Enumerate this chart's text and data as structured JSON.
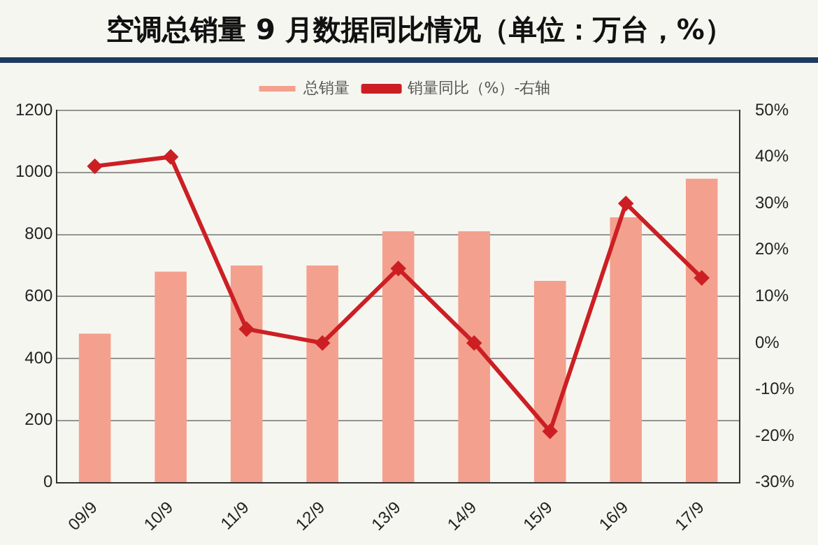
{
  "chart_data": {
    "type": "bar",
    "title": "空调总销量 9 月数据同比情况（单位：万台，%）",
    "categories": [
      "09/9",
      "10/9",
      "11/9",
      "12/9",
      "13/9",
      "14/9",
      "15/9",
      "16/9",
      "17/9"
    ],
    "series": [
      {
        "name": "总销量",
        "color": "#f4a08e",
        "values": [
          480,
          680,
          700,
          700,
          810,
          810,
          650,
          855,
          980
        ]
      },
      {
        "name": "销量同比（%）-右轴",
        "type": "line",
        "axis": "y2",
        "color": "#cc1f24",
        "marker": "diamond",
        "values": [
          38,
          40,
          3,
          0,
          16,
          0,
          -19,
          30,
          14
        ]
      }
    ],
    "ylim": [
      0,
      1200
    ],
    "yticks": [
      0,
      200,
      400,
      600,
      800,
      1000,
      1200
    ],
    "y2lim": [
      -30,
      50
    ],
    "y2ticks": [
      {
        "value": -30,
        "label": "-30%"
      },
      {
        "value": -20,
        "label": "-20%"
      },
      {
        "value": -10,
        "label": "-10%"
      },
      {
        "value": 0,
        "label": "0%"
      },
      {
        "value": 10,
        "label": "10%"
      },
      {
        "value": 20,
        "label": "20%"
      },
      {
        "value": 30,
        "label": "30%"
      },
      {
        "value": 40,
        "label": "40%"
      },
      {
        "value": 50,
        "label": "50%"
      }
    ],
    "grid": "y",
    "legend": "top"
  }
}
